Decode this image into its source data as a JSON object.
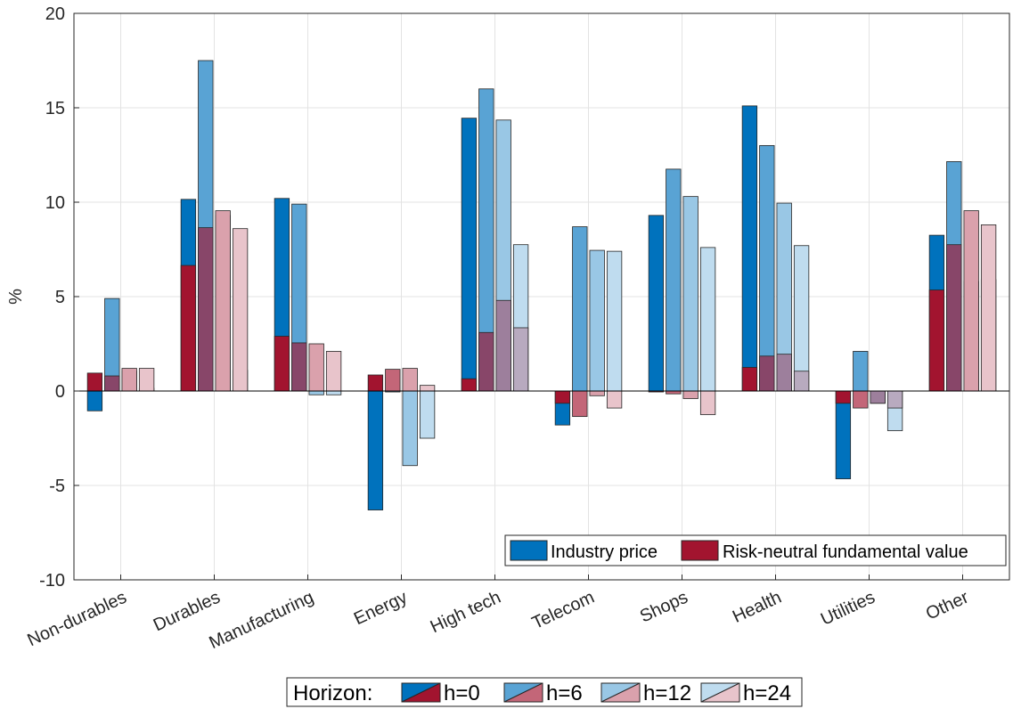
{
  "chart_data": {
    "type": "bar",
    "ylabel": "%",
    "ylim": [
      -10,
      20
    ],
    "yticks": [
      -10,
      -5,
      0,
      5,
      10,
      15,
      20
    ],
    "grid": true,
    "categories": [
      "Non-durables",
      "Durables",
      "Manufacturing",
      "Energy",
      "High tech",
      "Telecom",
      "Shops",
      "Health",
      "Utilities",
      "Other"
    ],
    "horizons": [
      "h=0",
      "h=6",
      "h=12",
      "h=24"
    ],
    "series": [
      {
        "name": "Industry price",
        "color": "#0072BD",
        "values": [
          [
            -1.05,
            4.9,
            1.05,
            0.15
          ],
          [
            10.15,
            17.5,
            9.3,
            1.1
          ],
          [
            10.2,
            9.9,
            -0.2,
            -0.2
          ],
          [
            -6.3,
            -0.05,
            -3.95,
            -2.5
          ],
          [
            14.45,
            16.0,
            14.35,
            7.75
          ],
          [
            -1.8,
            8.7,
            7.45,
            7.4
          ],
          [
            9.3,
            11.75,
            10.3,
            7.6
          ],
          [
            15.1,
            13.0,
            9.95,
            7.7
          ],
          [
            -4.65,
            2.1,
            -0.65,
            -2.1
          ],
          [
            8.25,
            12.15,
            5.8,
            5.9
          ]
        ]
      },
      {
        "name": "Risk-neutral fundamental value",
        "color": "#A2142F",
        "values": [
          [
            0.95,
            0.8,
            1.2,
            1.2
          ],
          [
            6.65,
            8.65,
            9.55,
            8.6
          ],
          [
            2.9,
            2.55,
            2.5,
            2.1
          ],
          [
            0.85,
            1.15,
            1.2,
            0.3
          ],
          [
            0.65,
            3.1,
            4.8,
            3.35
          ],
          [
            -0.65,
            -1.35,
            -0.25,
            -0.9
          ],
          [
            -0.05,
            -0.15,
            -0.4,
            -1.25
          ],
          [
            1.25,
            1.85,
            1.95,
            1.05
          ],
          [
            -0.65,
            -0.9,
            -0.65,
            -0.9
          ],
          [
            5.35,
            7.75,
            9.55,
            8.8
          ]
        ]
      }
    ],
    "legend_top": {
      "position": "bottom-right",
      "entries": [
        "Industry price",
        "Risk-neutral fundamental value"
      ]
    },
    "legend_bottom": {
      "title": "Horizon:",
      "entries": [
        "h=0",
        "h=6",
        "h=12",
        "h=24"
      ]
    },
    "shade_alphas": [
      1.0,
      0.65,
      0.4,
      0.25
    ]
  }
}
